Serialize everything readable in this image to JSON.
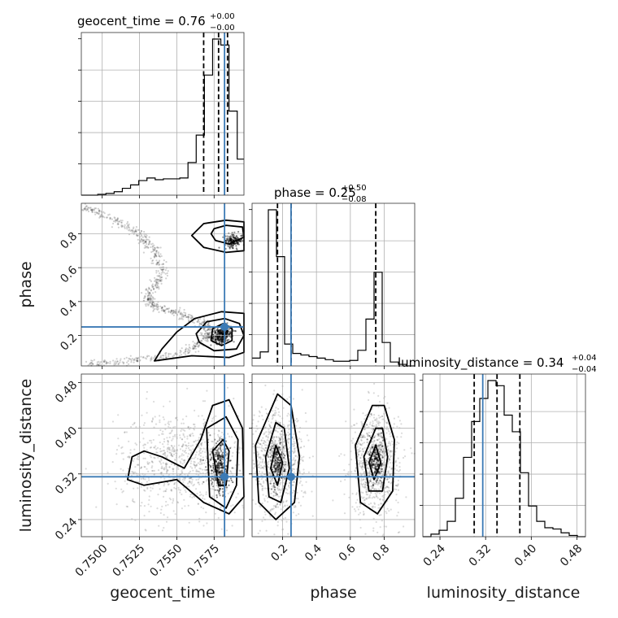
{
  "chart_data": {
    "type": "corner",
    "parameters": [
      "geocent_time",
      "phase",
      "luminosity_distance"
    ],
    "titles": [
      {
        "param": "geocent_time",
        "text": "geocent_time = 0.76",
        "plus": "+0.00",
        "minus": "−0.00"
      },
      {
        "param": "phase",
        "text": "phase = 0.25",
        "plus": "+0.50",
        "minus": "−0.08"
      },
      {
        "param": "luminosity_distance",
        "text": "luminosity_distance = 0.34",
        "plus": "+0.04",
        "minus": "−0.04"
      }
    ],
    "ranges": {
      "geocent_time": [
        0.7486,
        0.7595
      ],
      "phase": [
        0.02,
        0.98
      ],
      "luminosity_distance": [
        0.21,
        0.495
      ]
    },
    "ticks": {
      "geocent_time": {
        "values": [
          0.75,
          0.7525,
          0.755,
          0.7575
        ],
        "labels": [
          "0.7500",
          "0.7525",
          "0.7550",
          "0.7575"
        ]
      },
      "phase": {
        "values": [
          0.2,
          0.4,
          0.6,
          0.8
        ],
        "labels": [
          "0.2",
          "0.4",
          "0.6",
          "0.8"
        ]
      },
      "luminosity_distance": {
        "values": [
          0.24,
          0.32,
          0.4,
          0.48
        ],
        "labels": [
          "0.24",
          "0.32",
          "0.40",
          "0.48"
        ]
      }
    },
    "truths": {
      "geocent_time": 0.7582,
      "phase": 0.25,
      "luminosity_distance": 0.315
    },
    "quantiles": {
      "geocent_time": [
        0.7568,
        0.7578,
        0.7584
      ],
      "phase": [
        0.17,
        0.25,
        0.75
      ],
      "luminosity_distance": [
        0.3,
        0.34,
        0.38
      ]
    },
    "histograms": {
      "geocent_time": {
        "edges": [
          0.7486,
          0.74915,
          0.7497,
          0.75025,
          0.7508,
          0.75135,
          0.7519,
          0.75245,
          0.753,
          0.75355,
          0.7541,
          0.75465,
          0.7552,
          0.75575,
          0.7563,
          0.75685,
          0.7574,
          0.75795,
          0.7585,
          0.75905,
          0.7595
        ],
        "counts": [
          0,
          0,
          1,
          2,
          4,
          8,
          12,
          17,
          20,
          18,
          19,
          19,
          20,
          38,
          70,
          140,
          182,
          175,
          98,
          42
        ]
      },
      "phase": {
        "edges": [
          0.02,
          0.068,
          0.116,
          0.164,
          0.212,
          0.26,
          0.308,
          0.356,
          0.404,
          0.452,
          0.5,
          0.548,
          0.596,
          0.644,
          0.692,
          0.74,
          0.788,
          0.836,
          0.884,
          0.932,
          0.98
        ],
        "counts": [
          10,
          18,
          200,
          140,
          28,
          16,
          14,
          12,
          10,
          8,
          6,
          6,
          7,
          20,
          60,
          120,
          30,
          5,
          2,
          0
        ]
      },
      "luminosity_distance": {
        "edges": [
          0.21,
          0.22425,
          0.2385,
          0.25275,
          0.267,
          0.28125,
          0.2955,
          0.30975,
          0.324,
          0.33825,
          0.3525,
          0.36675,
          0.381,
          0.39525,
          0.4095,
          0.42375,
          0.438,
          0.45225,
          0.4665,
          0.48075,
          0.495
        ],
        "counts": [
          0,
          2,
          5,
          12,
          30,
          62,
          90,
          108,
          122,
          118,
          95,
          82,
          50,
          24,
          12,
          7,
          6,
          3,
          1,
          0
        ]
      }
    },
    "samples_2d": [
      {
        "x": "geocent_time",
        "y": "phase",
        "track": [
          [
            0.7486,
            0.96
          ],
          [
            0.7505,
            0.9
          ],
          [
            0.7525,
            0.8
          ],
          [
            0.7535,
            0.7
          ],
          [
            0.7541,
            0.56
          ],
          [
            0.753,
            0.44
          ],
          [
            0.7535,
            0.37
          ],
          [
            0.7555,
            0.32
          ],
          [
            0.757,
            0.26
          ],
          [
            0.757,
            0.18
          ],
          [
            0.7555,
            0.1
          ],
          [
            0.752,
            0.05
          ],
          [
            0.749,
            0.03
          ]
        ],
        "hotspots": [
          [
            0.7579,
            0.19
          ],
          [
            0.7588,
            0.76
          ],
          [
            0.7582,
            0.22
          ]
        ],
        "contours": [
          [
            [
              0.7575,
              0.83
            ],
            [
              0.7583,
              0.85
            ],
            [
              0.7594,
              0.84
            ],
            [
              0.7595,
              0.78
            ],
            [
              0.7585,
              0.74
            ],
            [
              0.7576,
              0.76
            ],
            [
              0.7573,
              0.8
            ]
          ],
          [
            [
              0.7568,
              0.86
            ],
            [
              0.7583,
              0.88
            ],
            [
              0.7595,
              0.87
            ],
            [
              0.7595,
              0.7
            ],
            [
              0.7583,
              0.69
            ],
            [
              0.7568,
              0.72
            ],
            [
              0.756,
              0.79
            ]
          ],
          [
            [
              0.7573,
              0.17
            ],
            [
              0.758,
              0.14
            ],
            [
              0.7587,
              0.17
            ],
            [
              0.7587,
              0.24
            ],
            [
              0.7581,
              0.27
            ],
            [
              0.7574,
              0.24
            ]
          ],
          [
            [
              0.7565,
              0.16
            ],
            [
              0.7575,
              0.11
            ],
            [
              0.759,
              0.12
            ],
            [
              0.7595,
              0.2
            ],
            [
              0.7592,
              0.27
            ],
            [
              0.7582,
              0.3
            ],
            [
              0.757,
              0.28
            ],
            [
              0.7563,
              0.21
            ]
          ],
          [
            [
              0.7535,
              0.05
            ],
            [
              0.756,
              0.08
            ],
            [
              0.7585,
              0.07
            ],
            [
              0.7595,
              0.1
            ],
            [
              0.7595,
              0.33
            ],
            [
              0.758,
              0.34
            ],
            [
              0.7562,
              0.3
            ],
            [
              0.755,
              0.22
            ],
            [
              0.754,
              0.12
            ]
          ]
        ]
      },
      {
        "x": "geocent_time",
        "y": "luminosity_distance",
        "cloud": {
          "cx": 0.7555,
          "cy": 0.34,
          "sx": 0.0022,
          "sy": 0.045
        },
        "hotspots": [
          [
            0.7577,
            0.34
          ],
          [
            0.758,
            0.32
          ]
        ],
        "contours": [
          [
            [
              0.7574,
              0.36
            ],
            [
              0.7578,
              0.3
            ],
            [
              0.7583,
              0.3
            ],
            [
              0.7585,
              0.36
            ],
            [
              0.7581,
              0.38
            ]
          ],
          [
            [
              0.757,
              0.4
            ],
            [
              0.7572,
              0.28
            ],
            [
              0.7583,
              0.26
            ],
            [
              0.759,
              0.3
            ],
            [
              0.7591,
              0.38
            ],
            [
              0.7583,
              0.42
            ]
          ],
          [
            [
              0.754,
              0.35
            ],
            [
              0.7555,
              0.33
            ],
            [
              0.7566,
              0.38
            ],
            [
              0.7574,
              0.44
            ],
            [
              0.7585,
              0.45
            ],
            [
              0.7594,
              0.4
            ],
            [
              0.7595,
              0.28
            ],
            [
              0.7585,
              0.25
            ],
            [
              0.7568,
              0.27
            ],
            [
              0.755,
              0.31
            ],
            [
              0.7528,
              0.3
            ],
            [
              0.7517,
              0.31
            ],
            [
              0.752,
              0.35
            ],
            [
              0.7528,
              0.36
            ]
          ]
        ]
      },
      {
        "x": "phase",
        "y": "luminosity_distance",
        "clouds": [
          {
            "cx": 0.17,
            "cy": 0.34,
            "sx": 0.08,
            "sy": 0.045
          },
          {
            "cx": 0.75,
            "cy": 0.34,
            "sx": 0.07,
            "sy": 0.045
          }
        ],
        "hotspots": [
          [
            0.17,
            0.34
          ],
          [
            0.75,
            0.34
          ]
        ],
        "contours": [
          [
            [
              0.16,
              0.37
            ],
            [
              0.13,
              0.33
            ],
            [
              0.17,
              0.3
            ],
            [
              0.2,
              0.34
            ]
          ],
          [
            [
              0.16,
              0.41
            ],
            [
              0.1,
              0.35
            ],
            [
              0.12,
              0.28
            ],
            [
              0.19,
              0.27
            ],
            [
              0.24,
              0.33
            ],
            [
              0.21,
              0.4
            ]
          ],
          [
            [
              0.17,
              0.46
            ],
            [
              0.04,
              0.37
            ],
            [
              0.06,
              0.27
            ],
            [
              0.16,
              0.24
            ],
            [
              0.27,
              0.27
            ],
            [
              0.3,
              0.35
            ],
            [
              0.25,
              0.44
            ]
          ],
          [
            [
              0.75,
              0.37
            ],
            [
              0.71,
              0.34
            ],
            [
              0.74,
              0.31
            ],
            [
              0.78,
              0.34
            ]
          ],
          [
            [
              0.75,
              0.4
            ],
            [
              0.68,
              0.35
            ],
            [
              0.71,
              0.29
            ],
            [
              0.79,
              0.29
            ],
            [
              0.82,
              0.35
            ],
            [
              0.79,
              0.4
            ]
          ],
          [
            [
              0.73,
              0.44
            ],
            [
              0.63,
              0.37
            ],
            [
              0.66,
              0.27
            ],
            [
              0.76,
              0.25
            ],
            [
              0.85,
              0.29
            ],
            [
              0.86,
              0.38
            ],
            [
              0.8,
              0.44
            ]
          ]
        ]
      }
    ]
  }
}
